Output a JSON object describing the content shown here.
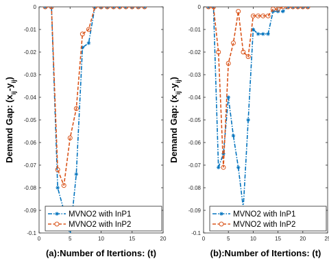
{
  "chart_data": [
    {
      "type": "line",
      "xlabel": "(a):Number of Itertions: (t)",
      "ylabel": "Demand Gap: (x_ij-y_ij)",
      "xlim": [
        0,
        20
      ],
      "ylim": [
        -0.1,
        0
      ],
      "xticks": [
        0,
        5,
        10,
        15,
        20
      ],
      "yticks": [
        0,
        -0.01,
        -0.02,
        -0.03,
        -0.04,
        -0.05,
        -0.06,
        -0.07,
        -0.08,
        -0.09,
        -0.1
      ],
      "grid": false,
      "legend_position": "bottom-right",
      "series": [
        {
          "name": "MVNO2 with InP1",
          "color": "#0072BD",
          "marker": "asterisk",
          "x": [
            1,
            2,
            3,
            4,
            5,
            6,
            7,
            8,
            9,
            10,
            11,
            12,
            13,
            14,
            15,
            16,
            17
          ],
          "y": [
            0,
            0,
            -0.08,
            -0.09,
            -0.101,
            -0.074,
            -0.018,
            -0.016,
            0,
            0,
            0,
            0,
            0,
            0,
            0,
            0,
            0
          ]
        },
        {
          "name": "MVNO2 with InP2",
          "color": "#D95319",
          "marker": "circle",
          "x": [
            1,
            2,
            3,
            4,
            5,
            6,
            7,
            8,
            9,
            10,
            11,
            12,
            13,
            14,
            15,
            16,
            17
          ],
          "y": [
            0,
            0,
            -0.072,
            -0.079,
            -0.058,
            -0.045,
            -0.012,
            -0.01,
            0,
            0,
            0,
            0,
            0,
            0,
            0,
            0,
            0
          ]
        }
      ]
    },
    {
      "type": "line",
      "xlabel": "(b):Number of Itertions: (t)",
      "ylabel": "Demand Gap: (x_ij-y_ij)",
      "xlim": [
        0,
        25
      ],
      "ylim": [
        -0.1,
        0
      ],
      "xticks": [
        0,
        5,
        10,
        15,
        20,
        25
      ],
      "yticks": [
        0,
        -0.01,
        -0.02,
        -0.03,
        -0.04,
        -0.05,
        -0.06,
        -0.07,
        -0.08,
        -0.09,
        -0.1
      ],
      "grid": false,
      "legend_position": "bottom-right",
      "series": [
        {
          "name": "MVNO2 with InP1",
          "color": "#0072BD",
          "marker": "asterisk",
          "x": [
            1,
            2,
            3,
            4,
            5,
            6,
            7,
            8,
            9,
            10,
            11,
            12,
            13,
            14,
            15,
            16,
            17,
            18,
            19,
            20,
            21
          ],
          "y": [
            0,
            0,
            -0.071,
            -0.065,
            -0.04,
            -0.057,
            -0.071,
            -0.089,
            -0.05,
            -0.01,
            -0.012,
            -0.012,
            -0.012,
            -0.002,
            -0.002,
            -0.002,
            0,
            0,
            0,
            0,
            0
          ]
        },
        {
          "name": "MVNO2 with InP2",
          "color": "#D95319",
          "marker": "circle",
          "x": [
            1,
            2,
            3,
            4,
            5,
            6,
            7,
            8,
            9,
            10,
            11,
            12,
            13,
            14,
            15,
            16,
            17,
            18,
            19,
            20,
            21
          ],
          "y": [
            0,
            0,
            -0.02,
            -0.071,
            -0.025,
            -0.016,
            -0.002,
            -0.02,
            -0.022,
            -0.004,
            -0.004,
            -0.004,
            -0.004,
            -0.001,
            -0.001,
            0,
            0,
            0,
            0,
            0,
            0
          ]
        }
      ]
    }
  ]
}
